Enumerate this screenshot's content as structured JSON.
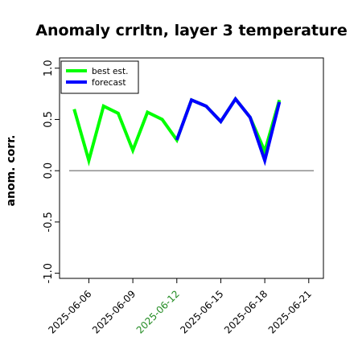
{
  "chart_data": {
    "type": "line",
    "title": "Anomaly crrltn, layer 3 temperature",
    "xlabel": "",
    "ylabel": "anom. corr.",
    "ylim": [
      -1.05,
      1.1
    ],
    "yticks": [
      -1.0,
      -0.5,
      0.0,
      0.5,
      1.0
    ],
    "ytick_labels": [
      "-1.0",
      "-0.5",
      "0.0",
      "0.5",
      "1.0"
    ],
    "xticks": [
      "2025-06-06",
      "2025-06-09",
      "2025-06-12",
      "2025-06-15",
      "2025-06-18",
      "2025-06-21"
    ],
    "xtick_colors": [
      "#000000",
      "#000000",
      "#228b22",
      "#000000",
      "#000000",
      "#000000"
    ],
    "x_start": "2025-06-04",
    "x_end": "2025-06-22",
    "reference_line_y": 0.0,
    "legend_position": "top-left",
    "grid": false,
    "series": [
      {
        "name": "best est.",
        "color": "#00ff00",
        "x": [
          "2025-06-05",
          "2025-06-06",
          "2025-06-07",
          "2025-06-08",
          "2025-06-09",
          "2025-06-10",
          "2025-06-11",
          "2025-06-12",
          "2025-06-13",
          "2025-06-14",
          "2025-06-15",
          "2025-06-16",
          "2025-06-17",
          "2025-06-18",
          "2025-06-19"
        ],
        "values": [
          0.6,
          0.1,
          0.63,
          0.56,
          0.2,
          0.57,
          0.5,
          0.3,
          0.69,
          0.63,
          0.48,
          0.7,
          0.52,
          0.19,
          0.69
        ]
      },
      {
        "name": "forecast",
        "color": "#0000ff",
        "x": [
          "2025-06-12",
          "2025-06-13",
          "2025-06-14",
          "2025-06-15",
          "2025-06-16",
          "2025-06-17",
          "2025-06-18",
          "2025-06-19"
        ],
        "values": [
          0.3,
          0.69,
          0.63,
          0.48,
          0.7,
          0.52,
          0.1,
          0.67
        ]
      }
    ]
  }
}
